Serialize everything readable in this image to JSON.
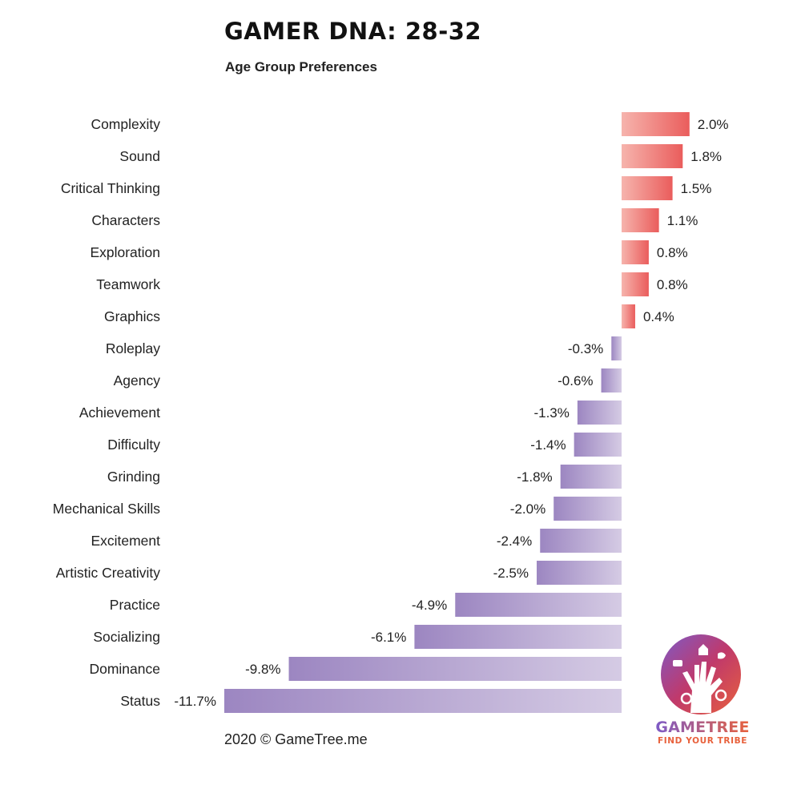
{
  "header": {
    "title": "GAMER DNA: 28-32",
    "subtitle": "Age Group Preferences"
  },
  "footer": {
    "copyright": "2020 © GameTree.me"
  },
  "logo": {
    "brand_text": "GAMETREE",
    "tagline": "FIND YOUR TRIBE",
    "icon": "gametree-hand-tree-logo"
  },
  "colors": {
    "positive_light": "#f6b4ad",
    "positive_dark": "#ea5d5c",
    "negative_dark": "#9c86c1",
    "negative_light": "#d5cbe4",
    "text": "#222222"
  },
  "chart_data": {
    "type": "bar",
    "orientation": "horizontal",
    "categories": [
      "Complexity",
      "Sound",
      "Critical Thinking",
      "Characters",
      "Exploration",
      "Teamwork",
      "Graphics",
      "Roleplay",
      "Agency",
      "Achievement",
      "Difficulty",
      "Grinding",
      "Mechanical Skills",
      "Excitement",
      "Artistic Creativity",
      "Practice",
      "Socializing",
      "Dominance",
      "Status"
    ],
    "values": [
      2.0,
      1.8,
      1.5,
      1.1,
      0.8,
      0.8,
      0.4,
      -0.3,
      -0.6,
      -1.3,
      -1.4,
      -1.8,
      -2.0,
      -2.4,
      -2.5,
      -4.9,
      -6.1,
      -9.8,
      -11.7
    ],
    "labels": [
      "2.0%",
      "1.8%",
      "1.5%",
      "1.1%",
      "0.8%",
      "0.8%",
      "0.4%",
      "-0.3%",
      "-0.6%",
      "-1.3%",
      "-1.4%",
      "-1.8%",
      "-2.0%",
      "-2.4%",
      "-2.5%",
      "-4.9%",
      "-6.1%",
      "-9.8%",
      "-11.7%"
    ],
    "unit": "%",
    "xlim": [
      -11.7,
      2.0
    ],
    "grid": false,
    "legend": "none"
  }
}
